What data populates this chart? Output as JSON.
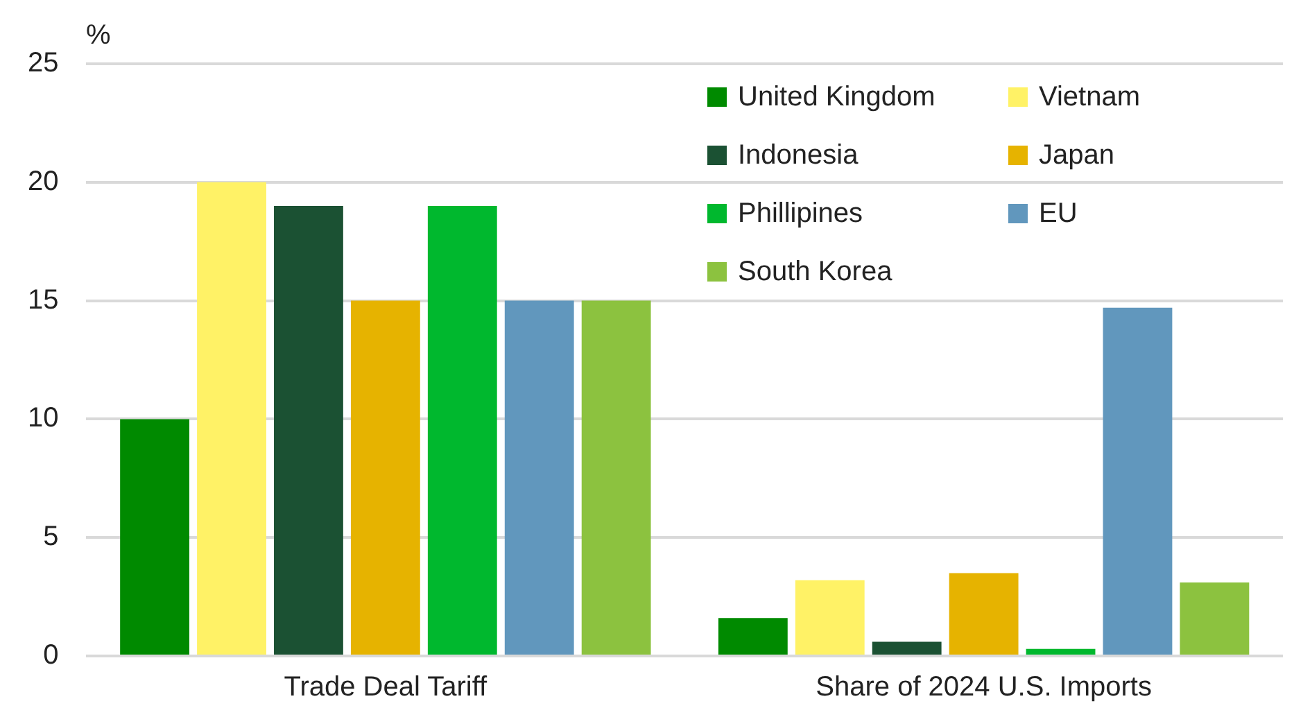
{
  "chart_data": {
    "type": "bar",
    "ylabel": "%",
    "categories": [
      "Trade Deal Tariff",
      "Share of 2024 U.S. Imports"
    ],
    "series": [
      {
        "name": "United Kingdom",
        "color": "#008a00",
        "values": [
          10,
          1.6
        ]
      },
      {
        "name": "Vietnam",
        "color": "#fff266",
        "values": [
          20,
          3.2
        ]
      },
      {
        "name": "Indonesia",
        "color": "#1b5133",
        "values": [
          19,
          0.6
        ]
      },
      {
        "name": "Japan",
        "color": "#e6b300",
        "values": [
          15,
          3.5
        ]
      },
      {
        "name": "Phillipines",
        "color": "#00b82e",
        "values": [
          19,
          0.3
        ]
      },
      {
        "name": "EU",
        "color": "#6197bd",
        "values": [
          15,
          14.7
        ]
      },
      {
        "name": "South Korea",
        "color": "#8cc23f",
        "values": [
          15,
          3.1
        ]
      }
    ],
    "ylim": [
      0,
      25
    ],
    "yticks": [
      0,
      5,
      10,
      15,
      20,
      25
    ],
    "grid": "y",
    "legend": "top right"
  }
}
